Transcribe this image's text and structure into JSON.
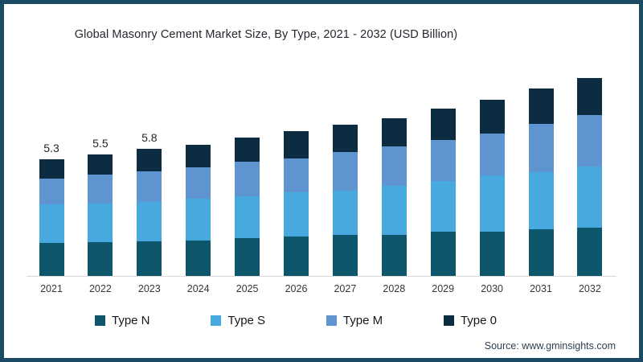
{
  "title": "Global Masonry Cement Market Size, By Type, 2021 - 2032 (USD Billion)",
  "source": "Source: www.gminsights.com",
  "colors": {
    "type_n": "#0E566B",
    "type_s": "#47A9DD",
    "type_m": "#5E95D1",
    "type_0": "#0C2C41",
    "frame_border": "#1A4A64",
    "axis_line": "#D8D8D8"
  },
  "chart_data": {
    "type": "bar",
    "stacked": true,
    "title": "Global Masonry Cement Market Size, By Type, 2021 - 2032 (USD Billion)",
    "xlabel": "",
    "ylabel": "",
    "units": "USD Billion",
    "grid": false,
    "legend_position": "bottom",
    "categories": [
      "2021",
      "2022",
      "2023",
      "2024",
      "2025",
      "2026",
      "2027",
      "2028",
      "2029",
      "2030",
      "2031",
      "2032"
    ],
    "series": [
      {
        "name": "Type N",
        "color": "#0E566B",
        "values": [
          1.52,
          1.54,
          1.58,
          1.61,
          1.72,
          1.8,
          1.86,
          1.87,
          2.01,
          2.02,
          2.12,
          2.19
        ]
      },
      {
        "name": "Type S",
        "color": "#47A9DD",
        "values": [
          1.74,
          1.76,
          1.8,
          1.9,
          1.92,
          2.0,
          2.03,
          2.23,
          2.3,
          2.55,
          2.6,
          2.78
        ]
      },
      {
        "name": "Type M",
        "color": "#5E95D1",
        "values": [
          1.16,
          1.32,
          1.4,
          1.45,
          1.58,
          1.54,
          1.74,
          1.79,
          1.87,
          1.91,
          2.19,
          2.34
        ]
      },
      {
        "name": "Type 0",
        "color": "#0C2C41",
        "values": [
          0.88,
          0.9,
          1.0,
          1.03,
          1.07,
          1.25,
          1.25,
          1.28,
          1.45,
          1.53,
          1.61,
          1.72
        ]
      }
    ],
    "totals": [
      5.3,
      5.5,
      5.8,
      6.0,
      6.3,
      6.6,
      6.9,
      7.2,
      7.6,
      8.0,
      8.5,
      9.0
    ],
    "data_labels": [
      "5.3",
      "5.5",
      "5.8",
      null,
      null,
      null,
      null,
      null,
      null,
      null,
      null,
      null
    ]
  }
}
